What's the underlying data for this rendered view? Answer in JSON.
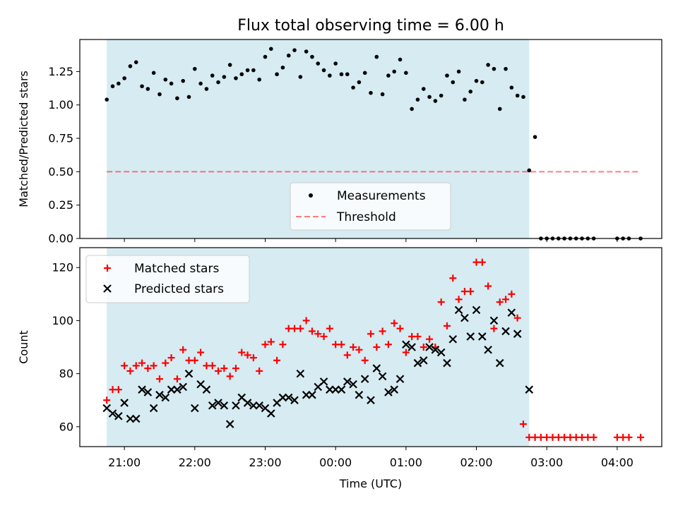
{
  "colors": {
    "shade": "#add8e6",
    "measurement": "#000000",
    "threshold": "#ff0000",
    "matched": "#ff0000",
    "predicted": "#000000"
  },
  "chart_data": [
    {
      "type": "scatter",
      "title": "Flux total observing time = 6.00 h",
      "xlabel": "",
      "ylabel": "Matched/Predicted stars",
      "ylim": [
        0,
        1.49
      ],
      "yticks": [
        "0.00",
        "0.25",
        "0.50",
        "0.75",
        "1.00",
        "1.25"
      ],
      "shaded_interval": [
        "20:45",
        "02:45"
      ],
      "legend_position": "lower-center",
      "series": [
        {
          "name": "Measurements",
          "marker": "dot",
          "x": [
            "20:45",
            "20:50",
            "20:55",
            "21:00",
            "21:05",
            "21:10",
            "21:15",
            "21:20",
            "21:25",
            "21:30",
            "21:35",
            "21:40",
            "21:45",
            "21:50",
            "21:55",
            "22:00",
            "22:05",
            "22:10",
            "22:15",
            "22:20",
            "22:25",
            "22:30",
            "22:35",
            "22:40",
            "22:45",
            "22:50",
            "22:55",
            "23:00",
            "23:05",
            "23:10",
            "23:15",
            "23:20",
            "23:25",
            "23:30",
            "23:35",
            "23:40",
            "23:45",
            "23:50",
            "23:55",
            "00:00",
            "00:05",
            "00:10",
            "00:15",
            "00:20",
            "00:25",
            "00:30",
            "00:35",
            "00:40",
            "00:45",
            "00:50",
            "00:55",
            "01:00",
            "01:05",
            "01:10",
            "01:15",
            "01:20",
            "01:25",
            "01:30",
            "01:35",
            "01:40",
            "01:45",
            "01:50",
            "01:55",
            "02:00",
            "02:05",
            "02:10",
            "02:15",
            "02:20",
            "02:25",
            "02:30",
            "02:35",
            "02:40",
            "02:45",
            "02:50",
            "02:55",
            "03:00",
            "03:05",
            "03:10",
            "03:15",
            "03:20",
            "03:25",
            "03:30",
            "03:35",
            "03:40",
            "04:00",
            "04:05",
            "04:10",
            "04:20"
          ],
          "y": [
            1.04,
            1.14,
            1.16,
            1.2,
            1.29,
            1.32,
            1.14,
            1.12,
            1.24,
            1.08,
            1.19,
            1.16,
            1.05,
            1.18,
            1.06,
            1.27,
            1.16,
            1.12,
            1.22,
            1.17,
            1.21,
            1.3,
            1.2,
            1.23,
            1.26,
            1.26,
            1.19,
            1.36,
            1.42,
            1.23,
            1.28,
            1.37,
            1.41,
            1.21,
            1.4,
            1.36,
            1.31,
            1.26,
            1.22,
            1.31,
            1.23,
            1.23,
            1.13,
            1.17,
            1.24,
            1.09,
            1.36,
            1.08,
            1.22,
            1.25,
            1.34,
            1.24,
            0.97,
            1.04,
            1.12,
            1.06,
            1.03,
            1.07,
            1.22,
            1.17,
            1.25,
            1.04,
            1.1,
            1.18,
            1.17,
            1.3,
            1.27,
            0.97,
            1.27,
            1.13,
            1.07,
            1.06,
            0.51,
            0.76,
            0,
            0,
            0,
            0,
            0,
            0,
            0,
            0,
            0,
            0,
            0,
            0,
            0,
            0
          ]
        },
        {
          "name": "Threshold",
          "style": "dashed",
          "x": [
            "20:45",
            "04:20"
          ],
          "y": [
            0.5,
            0.5
          ]
        }
      ]
    },
    {
      "type": "scatter",
      "title": "",
      "xlabel": "Time (UTC)",
      "ylabel": "Count",
      "ylim": [
        52.5,
        127.5
      ],
      "yticks": [
        "60",
        "80",
        "100",
        "120"
      ],
      "xticks": [
        "21:00",
        "22:00",
        "23:00",
        "00:00",
        "01:00",
        "02:00",
        "03:00",
        "04:00"
      ],
      "shaded_interval": [
        "20:45",
        "02:45"
      ],
      "legend_position": "upper-left",
      "series": [
        {
          "name": "Matched stars",
          "marker": "plus",
          "x": [
            "20:45",
            "20:50",
            "20:55",
            "21:00",
            "21:05",
            "21:10",
            "21:15",
            "21:20",
            "21:25",
            "21:30",
            "21:35",
            "21:40",
            "21:45",
            "21:50",
            "21:55",
            "22:00",
            "22:05",
            "22:10",
            "22:15",
            "22:20",
            "22:25",
            "22:30",
            "22:35",
            "22:40",
            "22:45",
            "22:50",
            "22:55",
            "23:00",
            "23:05",
            "23:10",
            "23:15",
            "23:20",
            "23:25",
            "23:30",
            "23:35",
            "23:40",
            "23:45",
            "23:50",
            "23:55",
            "00:00",
            "00:05",
            "00:10",
            "00:15",
            "00:20",
            "00:25",
            "00:30",
            "00:35",
            "00:40",
            "00:45",
            "00:50",
            "00:55",
            "01:00",
            "01:05",
            "01:10",
            "01:15",
            "01:20",
            "01:25",
            "01:30",
            "01:35",
            "01:40",
            "01:45",
            "01:50",
            "01:55",
            "02:00",
            "02:05",
            "02:10",
            "02:15",
            "02:20",
            "02:25",
            "02:30",
            "02:35",
            "02:40",
            "02:45",
            "02:50",
            "02:55",
            "03:00",
            "03:05",
            "03:10",
            "03:15",
            "03:20",
            "03:25",
            "03:30",
            "03:35",
            "03:40",
            "04:00",
            "04:05",
            "04:10",
            "04:20"
          ],
          "y": [
            70,
            74,
            74,
            83,
            81,
            83,
            84,
            82,
            83,
            78,
            84,
            86,
            78,
            89,
            85,
            85,
            88,
            83,
            83,
            81,
            82,
            79,
            82,
            88,
            87,
            86,
            81,
            91,
            92,
            85,
            91,
            97,
            97,
            97,
            100,
            96,
            95,
            94,
            97,
            91,
            91,
            87,
            90,
            89,
            85,
            95,
            90,
            96,
            91,
            99,
            97,
            88,
            94,
            94,
            90,
            93,
            90,
            107,
            98,
            116,
            108,
            111,
            111,
            122,
            122,
            113,
            97,
            107,
            108,
            110,
            101,
            61,
            56,
            56,
            56,
            56,
            56,
            56,
            56,
            56,
            56,
            56,
            56,
            56,
            56,
            56,
            56,
            56
          ]
        },
        {
          "name": "Predicted stars",
          "marker": "x",
          "x": [
            "20:45",
            "20:50",
            "20:55",
            "21:00",
            "21:05",
            "21:10",
            "21:15",
            "21:20",
            "21:25",
            "21:30",
            "21:35",
            "21:40",
            "21:45",
            "21:50",
            "21:55",
            "22:00",
            "22:05",
            "22:10",
            "22:15",
            "22:20",
            "22:25",
            "22:30",
            "22:35",
            "22:40",
            "22:45",
            "22:50",
            "22:55",
            "23:00",
            "23:05",
            "23:10",
            "23:15",
            "23:20",
            "23:25",
            "23:30",
            "23:35",
            "23:40",
            "23:45",
            "23:50",
            "23:55",
            "00:00",
            "00:05",
            "00:10",
            "00:15",
            "00:20",
            "00:25",
            "00:30",
            "00:35",
            "00:40",
            "00:45",
            "00:50",
            "00:55",
            "01:00",
            "01:05",
            "01:10",
            "01:15",
            "01:20",
            "01:25",
            "01:30",
            "01:35",
            "01:40",
            "01:45",
            "01:50",
            "01:55",
            "02:00",
            "02:05",
            "02:10",
            "02:15",
            "02:20",
            "02:25",
            "02:30",
            "02:35",
            "02:45"
          ],
          "y": [
            67,
            65,
            64,
            69,
            63,
            63,
            74,
            73,
            67,
            72,
            71,
            74,
            74,
            75,
            80,
            67,
            76,
            74,
            68,
            69,
            68,
            61,
            68,
            71,
            69,
            68,
            68,
            67,
            65,
            69,
            71,
            71,
            70,
            80,
            72,
            72,
            75,
            77,
            74,
            74,
            74,
            77,
            76,
            72,
            78,
            70,
            82,
            79,
            73,
            74,
            78,
            91,
            90,
            84,
            85,
            90,
            89,
            88,
            84,
            93,
            104,
            101,
            94,
            104,
            94,
            89,
            100,
            84,
            96,
            103,
            95,
            74
          ]
        }
      ]
    }
  ]
}
